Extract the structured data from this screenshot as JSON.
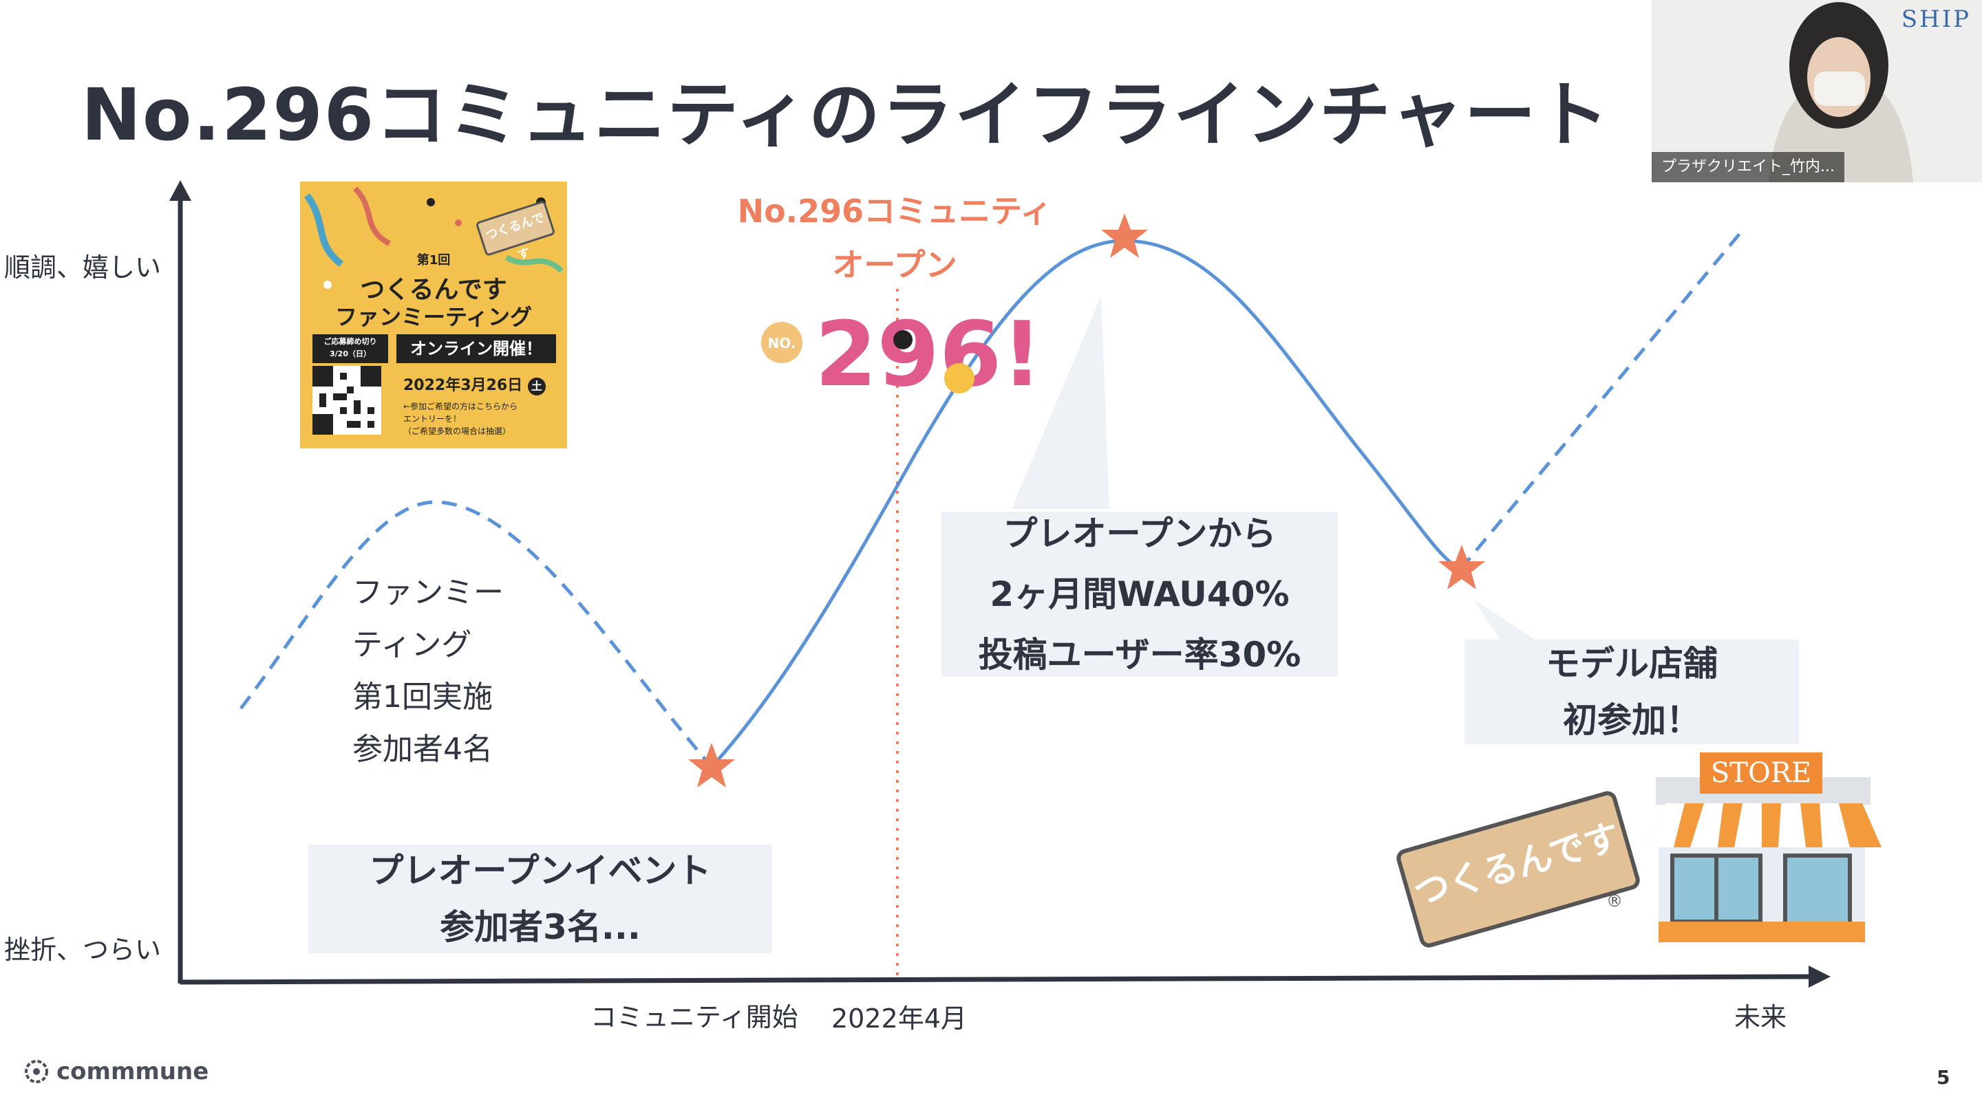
{
  "slide": {
    "title": "No.296コミュニティのライフラインチャート",
    "page_number": "5"
  },
  "chart_data": {
    "type": "line",
    "ylabel_top": "順調、嬉しい",
    "ylabel_bottom": "挫折、つらい",
    "x_labels": [
      "コミュニティ開始",
      "2022年4月",
      "未来"
    ],
    "series": [
      {
        "style": "dashed",
        "segment": "before-start"
      },
      {
        "style": "solid",
        "segment": "actual"
      },
      {
        "style": "dashed",
        "segment": "future"
      }
    ],
    "marker": "star",
    "line_color": "#5b93d8",
    "star_color": "#ee7f5c"
  },
  "annotations": {
    "fan_meeting": [
      "ファンミー",
      "ティング",
      "第1回実施",
      "参加者4名"
    ],
    "pre_open_event": [
      "プレオープンイベント",
      "参加者3名..."
    ],
    "community_open": [
      "No.296コミュニティ",
      "オープン"
    ],
    "pre_open_stats": [
      "プレオープンから",
      "2ヶ月間WAU40%",
      "投稿ユーザー率30%"
    ],
    "model_store": [
      "モデル店舗",
      "初参加！"
    ]
  },
  "flyer": {
    "round": "第1回",
    "title_line1": "つくるんです",
    "title_line2": "ファンミーティング",
    "deadline_line1": "ご応募締め切り",
    "deadline_line2": "3/20（日）",
    "online": "オンライン開催！",
    "date": "2022年3月26日",
    "weekday": "土",
    "note_line1": "←参加ご希望の方はこちらから",
    "note_line2": "エントリーを！",
    "note_line3": "（ご希望多数の場合は抽選）",
    "tag": "つくるんです"
  },
  "logo_296": {
    "prefix": "NO.",
    "digits": "296!"
  },
  "store": {
    "sign": "STORE",
    "brand": "つくるんです",
    "registered": "®"
  },
  "video": {
    "participant": "プラザクリエイト_竹内...",
    "brand": "SHIP"
  },
  "footer": {
    "brand": "commmune"
  }
}
